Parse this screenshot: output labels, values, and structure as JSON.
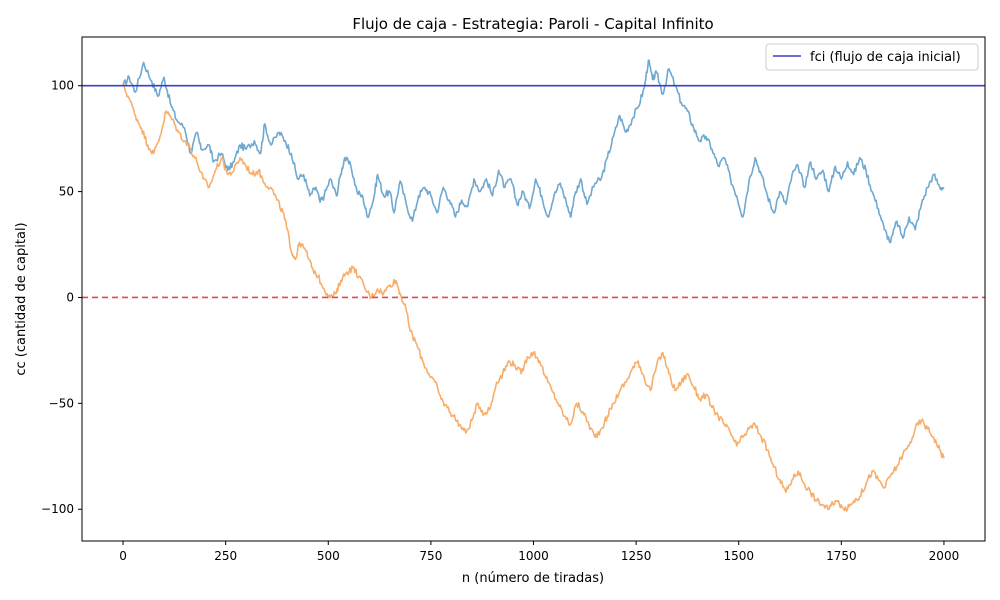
{
  "chart_data": {
    "type": "line",
    "title": "Flujo de caja - Estrategia: Paroli - Capital Infinito",
    "xlabel": "n (número de tiradas)",
    "ylabel": "cc (cantidad de capital)",
    "xlim": [
      -100,
      2100
    ],
    "ylim": [
      -115,
      123
    ],
    "xticks": [
      0,
      250,
      500,
      750,
      1000,
      1250,
      1500,
      1750,
      2000
    ],
    "xtick_labels": [
      "0",
      "250",
      "500",
      "750",
      "1000",
      "1250",
      "1500",
      "1750",
      "2000"
    ],
    "yticks": [
      100,
      50,
      0,
      -50,
      -100
    ],
    "ytick_labels": [
      "100",
      "50",
      "0",
      "−50",
      "−100"
    ],
    "legend": {
      "placement": "top-right",
      "entries": [
        "fci (flujo de caja inicial)"
      ]
    },
    "grid": false,
    "hlines": [
      {
        "y": 100,
        "color": "#3d3dcc",
        "style": "solid",
        "label": "fci (flujo de caja inicial)"
      },
      {
        "y": 0,
        "color": "#ee4444",
        "style": "dashed"
      }
    ],
    "series": [
      {
        "color": "#6fa8d0",
        "points": [
          [
            0,
            100
          ],
          [
            15,
            104
          ],
          [
            30,
            97
          ],
          [
            50,
            111
          ],
          [
            70,
            102
          ],
          [
            85,
            95
          ],
          [
            100,
            104
          ],
          [
            115,
            92
          ],
          [
            130,
            84
          ],
          [
            150,
            80
          ],
          [
            165,
            68
          ],
          [
            180,
            78
          ],
          [
            190,
            70
          ],
          [
            210,
            72
          ],
          [
            220,
            64
          ],
          [
            240,
            68
          ],
          [
            255,
            60
          ],
          [
            270,
            64
          ],
          [
            285,
            72
          ],
          [
            300,
            70
          ],
          [
            320,
            74
          ],
          [
            335,
            68
          ],
          [
            345,
            82
          ],
          [
            360,
            72
          ],
          [
            380,
            78
          ],
          [
            395,
            74
          ],
          [
            410,
            68
          ],
          [
            425,
            56
          ],
          [
            440,
            58
          ],
          [
            455,
            48
          ],
          [
            470,
            52
          ],
          [
            480,
            45
          ],
          [
            490,
            48
          ],
          [
            505,
            56
          ],
          [
            520,
            48
          ],
          [
            530,
            58
          ],
          [
            540,
            66
          ],
          [
            555,
            62
          ],
          [
            570,
            50
          ],
          [
            585,
            47
          ],
          [
            595,
            38
          ],
          [
            610,
            46
          ],
          [
            620,
            58
          ],
          [
            635,
            48
          ],
          [
            650,
            50
          ],
          [
            660,
            40
          ],
          [
            675,
            55
          ],
          [
            690,
            44
          ],
          [
            705,
            36
          ],
          [
            720,
            48
          ],
          [
            735,
            52
          ],
          [
            750,
            48
          ],
          [
            765,
            40
          ],
          [
            780,
            52
          ],
          [
            795,
            46
          ],
          [
            810,
            38
          ],
          [
            825,
            46
          ],
          [
            840,
            43
          ],
          [
            855,
            56
          ],
          [
            870,
            50
          ],
          [
            885,
            56
          ],
          [
            900,
            48
          ],
          [
            915,
            60
          ],
          [
            930,
            52
          ],
          [
            945,
            56
          ],
          [
            960,
            44
          ],
          [
            975,
            50
          ],
          [
            990,
            42
          ],
          [
            1005,
            56
          ],
          [
            1020,
            48
          ],
          [
            1035,
            38
          ],
          [
            1050,
            48
          ],
          [
            1065,
            54
          ],
          [
            1080,
            45
          ],
          [
            1090,
            38
          ],
          [
            1100,
            48
          ],
          [
            1115,
            56
          ],
          [
            1130,
            44
          ],
          [
            1150,
            54
          ],
          [
            1165,
            56
          ],
          [
            1180,
            66
          ],
          [
            1195,
            76
          ],
          [
            1210,
            86
          ],
          [
            1225,
            78
          ],
          [
            1240,
            84
          ],
          [
            1255,
            90
          ],
          [
            1270,
            99
          ],
          [
            1280,
            112
          ],
          [
            1290,
            103
          ],
          [
            1300,
            106
          ],
          [
            1315,
            96
          ],
          [
            1330,
            108
          ],
          [
            1345,
            100
          ],
          [
            1360,
            92
          ],
          [
            1375,
            88
          ],
          [
            1390,
            80
          ],
          [
            1405,
            74
          ],
          [
            1420,
            76
          ],
          [
            1435,
            70
          ],
          [
            1450,
            62
          ],
          [
            1465,
            66
          ],
          [
            1480,
            56
          ],
          [
            1495,
            48
          ],
          [
            1510,
            38
          ],
          [
            1525,
            55
          ],
          [
            1540,
            66
          ],
          [
            1555,
            58
          ],
          [
            1570,
            48
          ],
          [
            1585,
            40
          ],
          [
            1600,
            50
          ],
          [
            1615,
            44
          ],
          [
            1630,
            58
          ],
          [
            1645,
            62
          ],
          [
            1660,
            52
          ],
          [
            1675,
            64
          ],
          [
            1690,
            56
          ],
          [
            1705,
            60
          ],
          [
            1720,
            50
          ],
          [
            1735,
            62
          ],
          [
            1750,
            56
          ],
          [
            1765,
            64
          ],
          [
            1780,
            58
          ],
          [
            1795,
            66
          ],
          [
            1810,
            60
          ],
          [
            1825,
            50
          ],
          [
            1840,
            42
          ],
          [
            1855,
            32
          ],
          [
            1870,
            26
          ],
          [
            1885,
            36
          ],
          [
            1900,
            28
          ],
          [
            1915,
            38
          ],
          [
            1930,
            32
          ],
          [
            1945,
            44
          ],
          [
            1960,
            52
          ],
          [
            1975,
            58
          ],
          [
            1990,
            52
          ],
          [
            2000,
            52
          ]
        ]
      },
      {
        "color": "#f8ae6b",
        "points": [
          [
            0,
            100
          ],
          [
            15,
            94
          ],
          [
            30,
            86
          ],
          [
            45,
            80
          ],
          [
            60,
            72
          ],
          [
            75,
            68
          ],
          [
            90,
            76
          ],
          [
            105,
            88
          ],
          [
            120,
            84
          ],
          [
            135,
            78
          ],
          [
            150,
            74
          ],
          [
            165,
            70
          ],
          [
            180,
            64
          ],
          [
            195,
            56
          ],
          [
            210,
            52
          ],
          [
            225,
            60
          ],
          [
            240,
            66
          ],
          [
            255,
            58
          ],
          [
            270,
            60
          ],
          [
            285,
            66
          ],
          [
            300,
            62
          ],
          [
            315,
            58
          ],
          [
            330,
            60
          ],
          [
            345,
            54
          ],
          [
            360,
            52
          ],
          [
            375,
            46
          ],
          [
            390,
            40
          ],
          [
            400,
            32
          ],
          [
            410,
            22
          ],
          [
            420,
            18
          ],
          [
            430,
            26
          ],
          [
            445,
            22
          ],
          [
            460,
            14
          ],
          [
            475,
            10
          ],
          [
            490,
            4
          ],
          [
            505,
            0
          ],
          [
            520,
            2
          ],
          [
            530,
            8
          ],
          [
            545,
            12
          ],
          [
            560,
            14
          ],
          [
            575,
            10
          ],
          [
            590,
            4
          ],
          [
            605,
            0
          ],
          [
            620,
            4
          ],
          [
            635,
            2
          ],
          [
            650,
            6
          ],
          [
            665,
            8
          ],
          [
            675,
            2
          ],
          [
            690,
            -6
          ],
          [
            700,
            -16
          ],
          [
            715,
            -22
          ],
          [
            730,
            -30
          ],
          [
            745,
            -36
          ],
          [
            760,
            -40
          ],
          [
            775,
            -48
          ],
          [
            790,
            -52
          ],
          [
            805,
            -56
          ],
          [
            820,
            -60
          ],
          [
            835,
            -64
          ],
          [
            850,
            -58
          ],
          [
            865,
            -50
          ],
          [
            880,
            -55
          ],
          [
            895,
            -52
          ],
          [
            910,
            -40
          ],
          [
            925,
            -36
          ],
          [
            940,
            -30
          ],
          [
            955,
            -32
          ],
          [
            970,
            -36
          ],
          [
            985,
            -28
          ],
          [
            1000,
            -26
          ],
          [
            1015,
            -30
          ],
          [
            1030,
            -38
          ],
          [
            1045,
            -44
          ],
          [
            1060,
            -50
          ],
          [
            1075,
            -56
          ],
          [
            1090,
            -60
          ],
          [
            1105,
            -50
          ],
          [
            1120,
            -54
          ],
          [
            1135,
            -60
          ],
          [
            1150,
            -66
          ],
          [
            1165,
            -62
          ],
          [
            1180,
            -56
          ],
          [
            1195,
            -50
          ],
          [
            1210,
            -44
          ],
          [
            1225,
            -40
          ],
          [
            1240,
            -34
          ],
          [
            1255,
            -30
          ],
          [
            1270,
            -38
          ],
          [
            1285,
            -44
          ],
          [
            1300,
            -32
          ],
          [
            1315,
            -26
          ],
          [
            1330,
            -36
          ],
          [
            1345,
            -44
          ],
          [
            1360,
            -40
          ],
          [
            1375,
            -36
          ],
          [
            1390,
            -42
          ],
          [
            1405,
            -48
          ],
          [
            1420,
            -46
          ],
          [
            1435,
            -52
          ],
          [
            1450,
            -56
          ],
          [
            1465,
            -60
          ],
          [
            1480,
            -64
          ],
          [
            1495,
            -70
          ],
          [
            1510,
            -66
          ],
          [
            1525,
            -62
          ],
          [
            1540,
            -60
          ],
          [
            1555,
            -66
          ],
          [
            1570,
            -72
          ],
          [
            1585,
            -80
          ],
          [
            1600,
            -86
          ],
          [
            1615,
            -92
          ],
          [
            1630,
            -86
          ],
          [
            1645,
            -82
          ],
          [
            1660,
            -88
          ],
          [
            1675,
            -92
          ],
          [
            1690,
            -96
          ],
          [
            1705,
            -98
          ],
          [
            1720,
            -100
          ],
          [
            1735,
            -96
          ],
          [
            1750,
            -98
          ],
          [
            1765,
            -100
          ],
          [
            1780,
            -96
          ],
          [
            1795,
            -94
          ],
          [
            1810,
            -88
          ],
          [
            1825,
            -82
          ],
          [
            1840,
            -86
          ],
          [
            1855,
            -90
          ],
          [
            1870,
            -84
          ],
          [
            1885,
            -80
          ],
          [
            1900,
            -74
          ],
          [
            1915,
            -70
          ],
          [
            1930,
            -62
          ],
          [
            1945,
            -58
          ],
          [
            1960,
            -62
          ],
          [
            1975,
            -66
          ],
          [
            1990,
            -72
          ],
          [
            2000,
            -76
          ]
        ]
      }
    ]
  }
}
